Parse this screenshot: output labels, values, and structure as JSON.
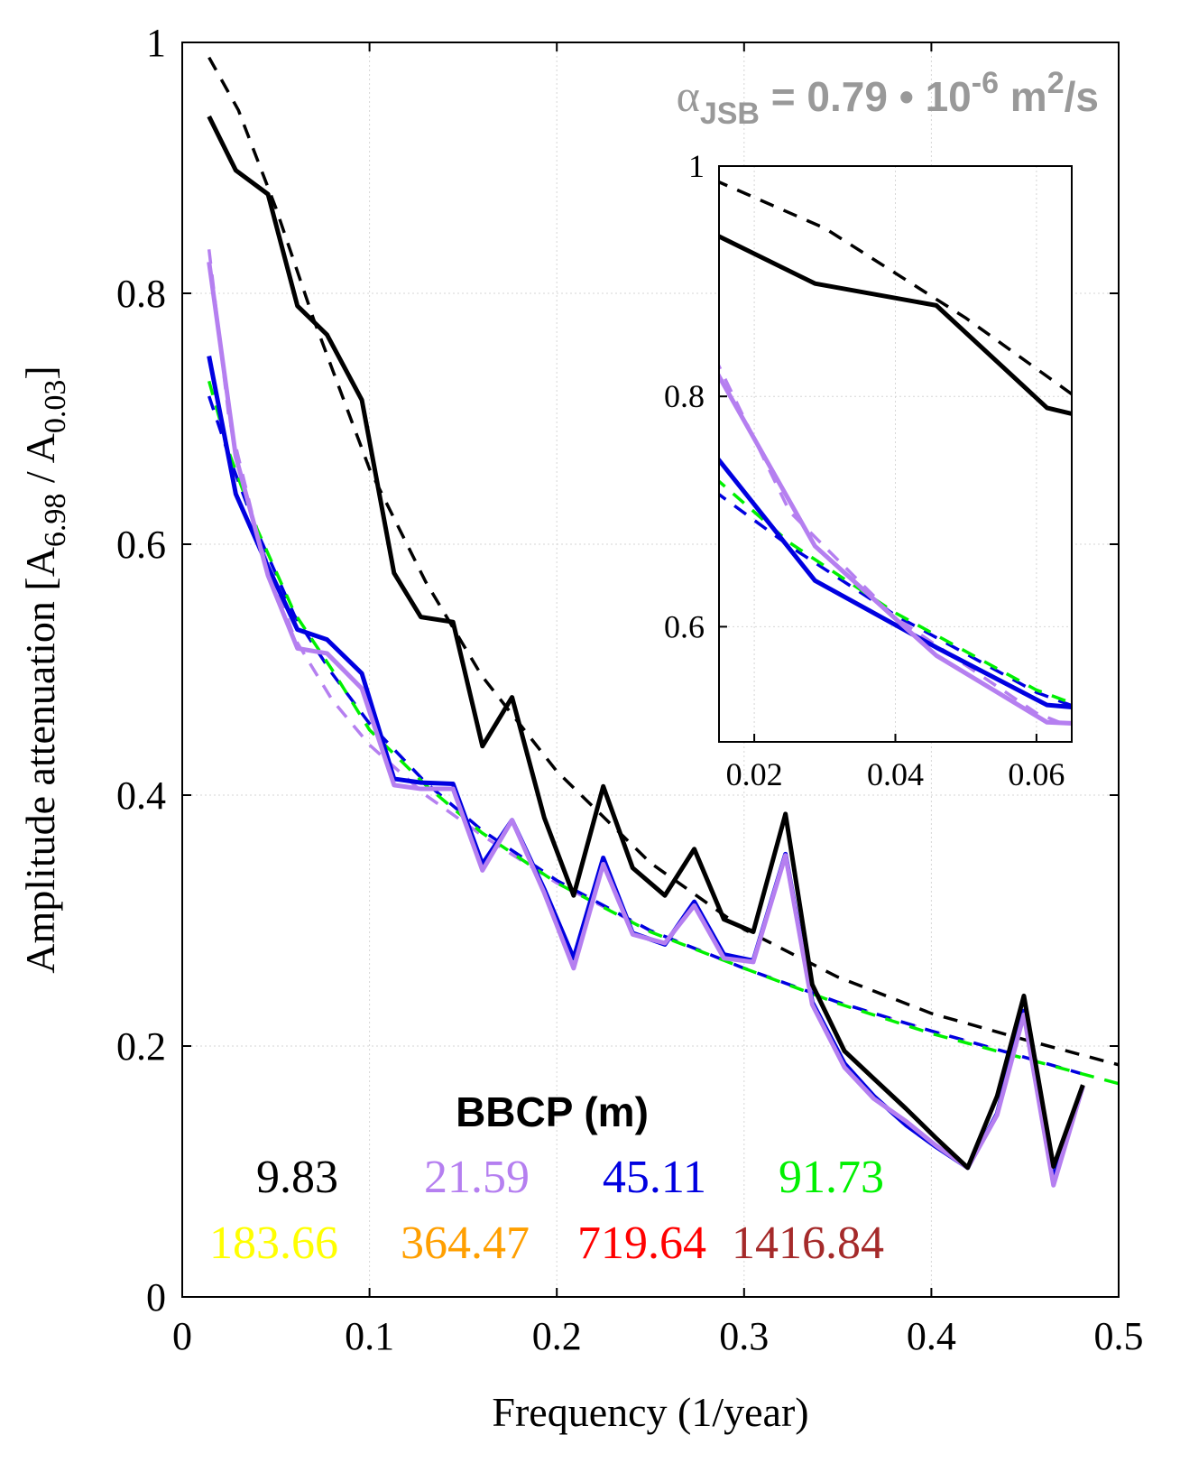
{
  "chart_data": {
    "type": "line",
    "xlabel": "Frequency (1/year)",
    "ylabel": "Amplitude attenuation [A6.98 / A0.03]",
    "ylabel_parts": {
      "lead": "Amplitude attenuation [A",
      "sub1": "6.98",
      "mid": " / A",
      "sub2": "0.03",
      "tail": "]"
    },
    "xlim": [
      0,
      0.5
    ],
    "ylim": [
      0,
      1
    ],
    "xticks": [
      "0",
      "0.1",
      "0.2",
      "0.3",
      "0.4",
      "0.5"
    ],
    "yticks": [
      "0",
      "0.2",
      "0.4",
      "0.6",
      "0.8",
      "1"
    ],
    "grid": true,
    "annotation": {
      "alpha": "α",
      "alpha_sub": "JSB",
      "equals": " = 0.79 • 10",
      "exp": "-6",
      "unit": " m",
      "unit_exp": "2",
      "unit_tail": "/s",
      "color": "#999999"
    },
    "legend": {
      "title": "BBCP (m)",
      "placement": "bottom-left",
      "entries": [
        {
          "label": "9.83",
          "color": "#000000"
        },
        {
          "label": "21.59",
          "color": "#b57ff0"
        },
        {
          "label": "45.11",
          "color": "#0000e0"
        },
        {
          "label": "91.73",
          "color": "#00f000"
        },
        {
          "label": "183.66",
          "color": "#ffff00"
        },
        {
          "label": "364.47",
          "color": "#ff9f00"
        },
        {
          "label": "719.64",
          "color": "#ff0000"
        },
        {
          "label": "1416.84",
          "color": "#a52a2a"
        }
      ]
    },
    "series": [
      {
        "name": "9.83",
        "kind": "observed",
        "color": "#000000",
        "x": [
          0.0143,
          0.0286,
          0.0458,
          0.0615,
          0.0773,
          0.0959,
          0.1131,
          0.1274,
          0.1446,
          0.1603,
          0.1761,
          0.1933,
          0.209,
          0.2248,
          0.2405,
          0.2577,
          0.2734,
          0.2892,
          0.3049,
          0.3221,
          0.3364,
          0.3536,
          0.3693,
          0.3865,
          0.4022,
          0.4194,
          0.4351,
          0.4494,
          0.4652,
          0.4809
        ],
        "y": [
          0.941,
          0.898,
          0.879,
          0.79,
          0.767,
          0.715,
          0.577,
          0.542,
          0.538,
          0.439,
          0.478,
          0.382,
          0.32,
          0.407,
          0.342,
          0.32,
          0.357,
          0.301,
          0.291,
          0.385,
          0.249,
          0.196,
          0.174,
          0.15,
          0.127,
          0.103,
          0.16,
          0.24,
          0.104,
          0.169
        ]
      },
      {
        "name": "21.59",
        "kind": "observed",
        "color": "#b57ff0",
        "x": [
          0.0143,
          0.0286,
          0.0458,
          0.0615,
          0.0773,
          0.0959,
          0.1131,
          0.1274,
          0.1446,
          0.1603,
          0.1761,
          0.1933,
          0.209,
          0.2248,
          0.2405,
          0.2577,
          0.2734,
          0.2892,
          0.3049,
          0.3221,
          0.3364,
          0.3536,
          0.3693,
          0.3865,
          0.4022,
          0.4194,
          0.4351,
          0.4494,
          0.4652,
          0.4809
        ],
        "y": [
          0.825,
          0.67,
          0.575,
          0.517,
          0.513,
          0.485,
          0.408,
          0.405,
          0.405,
          0.34,
          0.38,
          0.322,
          0.262,
          0.345,
          0.289,
          0.282,
          0.312,
          0.27,
          0.267,
          0.352,
          0.233,
          0.183,
          0.158,
          0.14,
          0.121,
          0.103,
          0.145,
          0.225,
          0.089,
          0.168
        ]
      },
      {
        "name": "45.11",
        "kind": "observed",
        "color": "#0000e0",
        "x": [
          0.0143,
          0.0286,
          0.0458,
          0.0615,
          0.0773,
          0.0959,
          0.1131,
          0.1274,
          0.1446,
          0.1603,
          0.1761,
          0.1933,
          0.209,
          0.2248,
          0.2405,
          0.2577,
          0.2734,
          0.2892,
          0.3049,
          0.3221,
          0.3364,
          0.3536,
          0.3693,
          0.3865,
          0.4022,
          0.4194,
          0.4351,
          0.4494,
          0.4652,
          0.4809
        ],
        "y": [
          0.75,
          0.64,
          0.582,
          0.532,
          0.524,
          0.497,
          0.413,
          0.41,
          0.409,
          0.345,
          0.38,
          0.325,
          0.27,
          0.35,
          0.29,
          0.281,
          0.315,
          0.273,
          0.268,
          0.353,
          0.235,
          0.186,
          0.16,
          0.137,
          0.12,
          0.103,
          0.146,
          0.228,
          0.094,
          0.168
        ]
      },
      {
        "name": "9.83",
        "kind": "fit",
        "color": "#000000",
        "x": [
          0.0143,
          0.03,
          0.05,
          0.07,
          0.1,
          0.13,
          0.16,
          0.2,
          0.25,
          0.3,
          0.35,
          0.4,
          0.45,
          0.5
        ],
        "y": [
          0.988,
          0.946,
          0.868,
          0.78,
          0.66,
          0.57,
          0.495,
          0.419,
          0.346,
          0.293,
          0.255,
          0.226,
          0.205,
          0.185
        ]
      },
      {
        "name": "21.59",
        "kind": "fit",
        "color": "#b57ff0",
        "x": [
          0.0143,
          0.025,
          0.04,
          0.06,
          0.08,
          0.1,
          0.13,
          0.16,
          0.2,
          0.25,
          0.3,
          0.35,
          0.4,
          0.45,
          0.48
        ],
        "y": [
          0.835,
          0.7,
          0.608,
          0.525,
          0.476,
          0.44,
          0.4,
          0.368,
          0.33,
          0.292,
          0.262,
          0.235,
          0.212,
          0.191,
          0.178
        ]
      },
      {
        "name": "45.11",
        "kind": "fit",
        "color": "#0000e0",
        "x": [
          0.0143,
          0.025,
          0.04,
          0.06,
          0.08,
          0.1,
          0.13,
          0.16,
          0.2,
          0.25,
          0.3,
          0.35,
          0.4,
          0.45,
          0.48
        ],
        "y": [
          0.718,
          0.67,
          0.61,
          0.543,
          0.497,
          0.457,
          0.41,
          0.372,
          0.332,
          0.292,
          0.262,
          0.235,
          0.212,
          0.191,
          0.178
        ]
      },
      {
        "name": "91.73",
        "kind": "fit",
        "color": "#00f000",
        "x": [
          0.0143,
          0.025,
          0.04,
          0.06,
          0.08,
          0.1,
          0.13,
          0.16,
          0.2,
          0.25,
          0.3,
          0.35,
          0.4,
          0.45,
          0.5
        ],
        "y": [
          0.73,
          0.673,
          0.612,
          0.545,
          0.5,
          0.452,
          0.408,
          0.37,
          0.33,
          0.291,
          0.262,
          0.234,
          0.21,
          0.19,
          0.17
        ]
      }
    ],
    "inset": {
      "xlim": [
        0.015,
        0.065
      ],
      "ylim": [
        0.5,
        1
      ],
      "xticks": [
        "0.02",
        "0.04",
        "0.06"
      ],
      "yticks": [
        "0.6",
        "0.8",
        "1"
      ]
    }
  }
}
